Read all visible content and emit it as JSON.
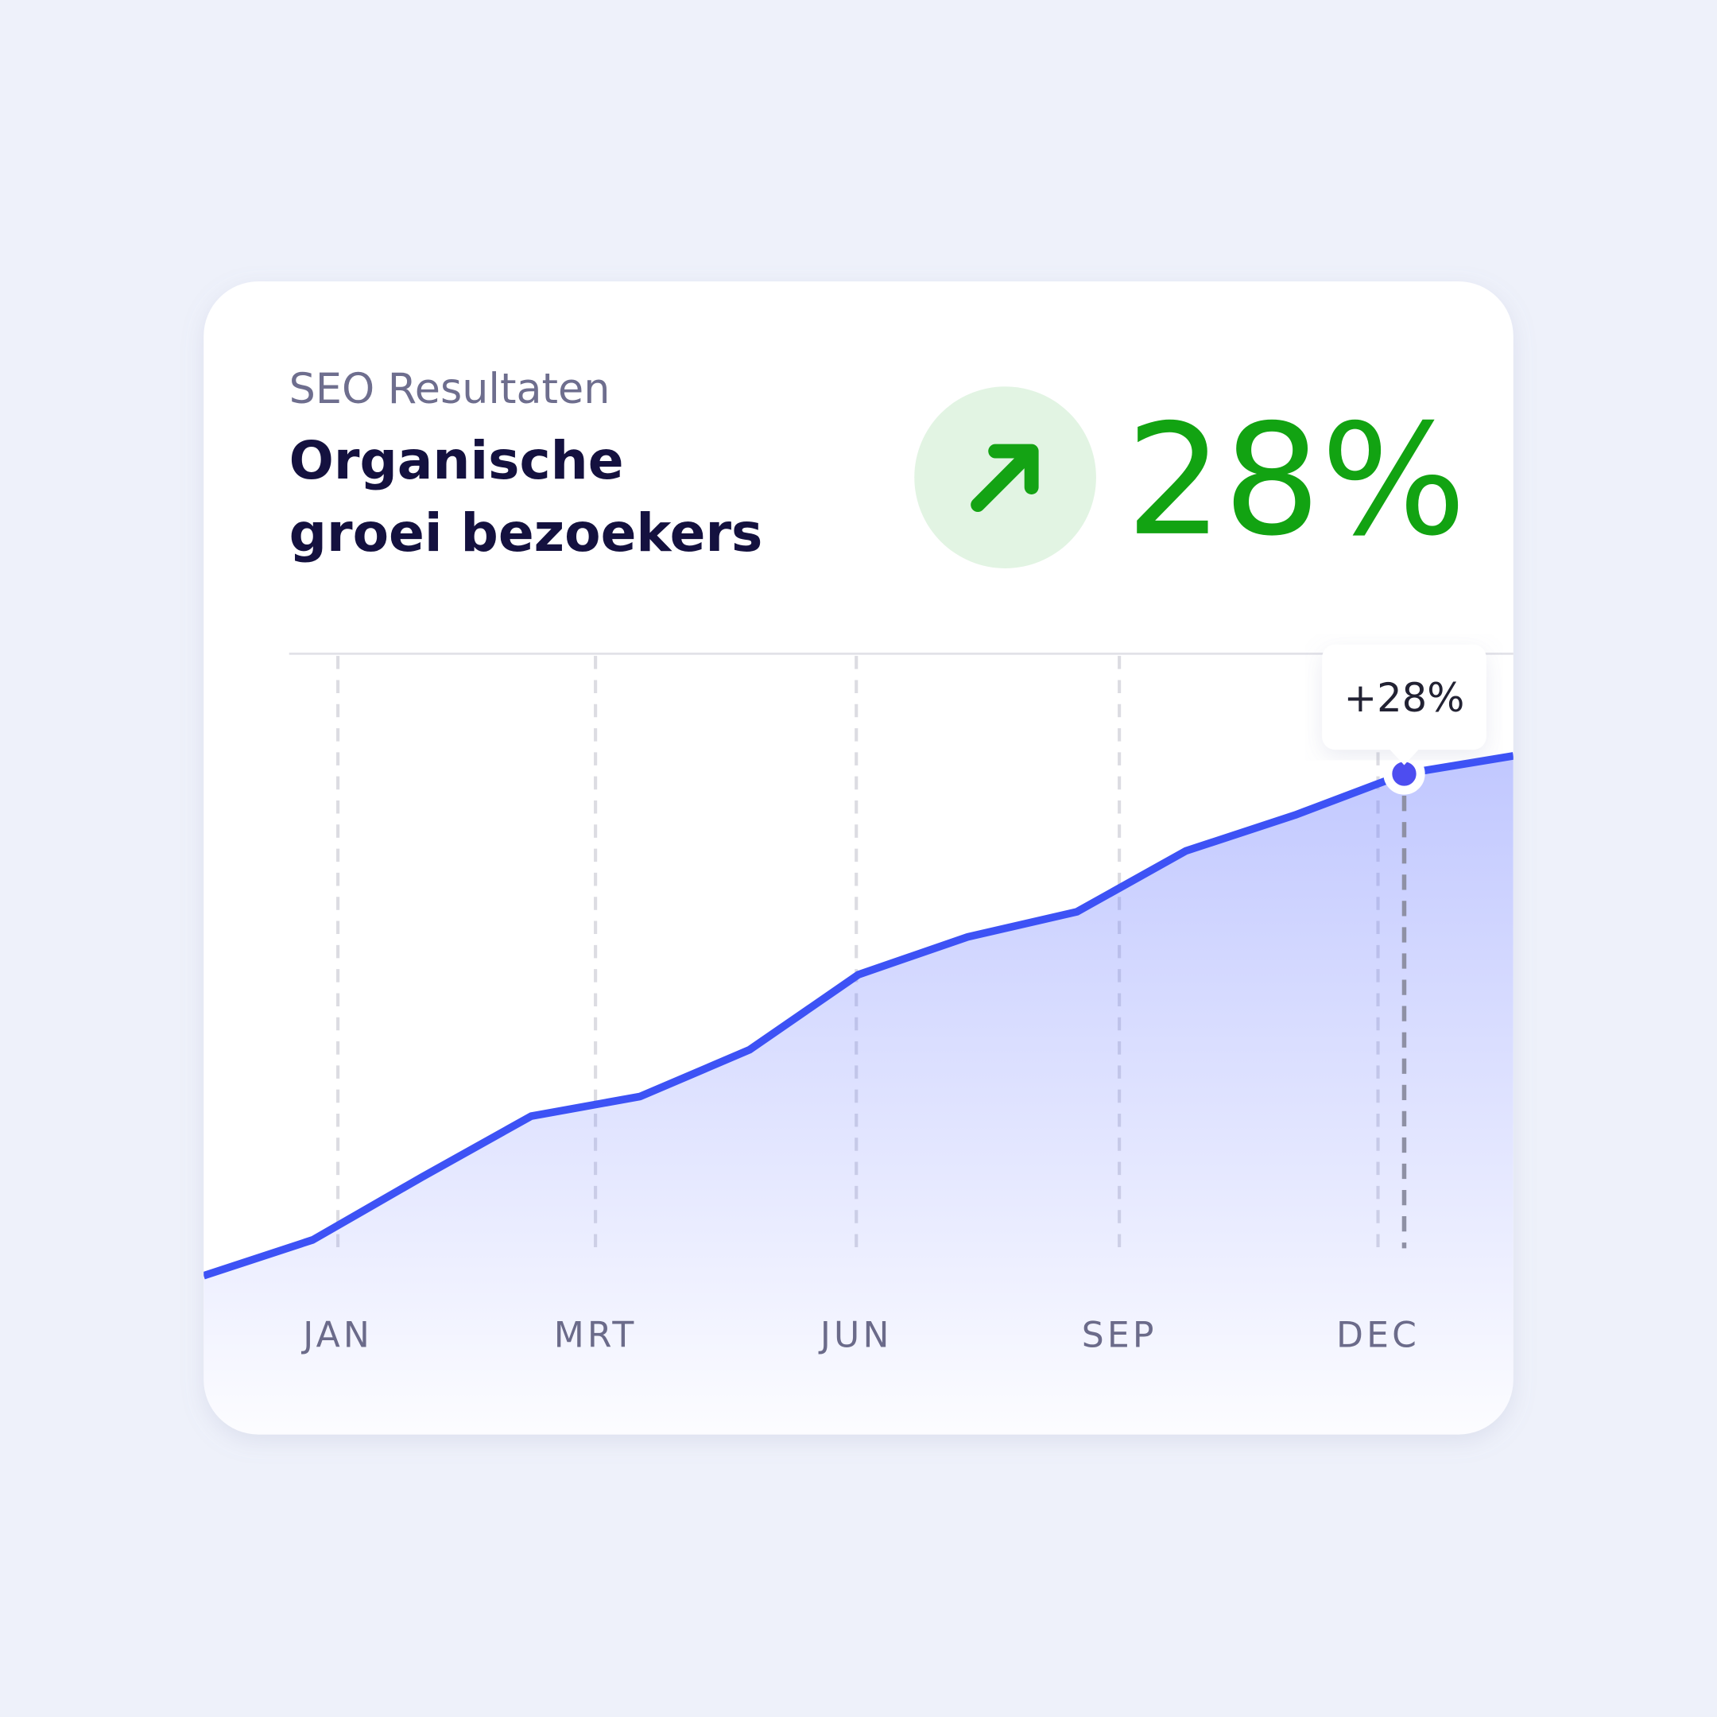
{
  "chart_data": {
    "type": "line",
    "subtitle": "SEO Resultaten",
    "title": [
      "Organische",
      "groei bezoekers"
    ],
    "kpi": "28%",
    "x": [
      0,
      1,
      2,
      3,
      4,
      5,
      6,
      7,
      8,
      9,
      10,
      11,
      12
    ],
    "series": [
      {
        "color": "#3d52f5",
        "values": [
          0,
          2.0,
          5.5,
          8.9,
          10.0,
          12.6,
          16.8,
          18.9,
          20.3,
          23.7,
          25.7,
          28,
          29.0
        ],
        "value_labels": [
          null,
          null,
          null,
          null,
          null,
          null,
          null,
          null,
          null,
          null,
          null,
          "+28%",
          null
        ]
      }
    ],
    "xlim": [
      0,
      12
    ],
    "ylim": [
      0,
      34.7
    ],
    "xticks": [
      {
        "value": 1.23,
        "label": "JAN"
      },
      {
        "value": 3.59,
        "label": "MRT"
      },
      {
        "value": 5.98,
        "label": "JUN"
      },
      {
        "value": 8.39,
        "label": "SEP"
      },
      {
        "value": 10.76,
        "label": "DEC"
      }
    ],
    "grid": true
  }
}
